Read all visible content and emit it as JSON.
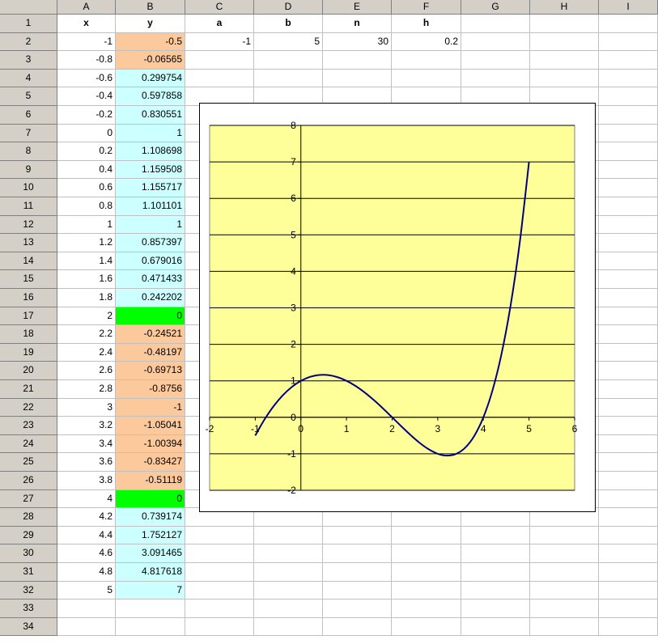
{
  "columns": [
    "A",
    "B",
    "C",
    "D",
    "E",
    "F",
    "G",
    "H",
    "I"
  ],
  "row_numbers": [
    "1",
    "2",
    "3",
    "4",
    "5",
    "6",
    "7",
    "8",
    "9",
    "10",
    "11",
    "12",
    "13",
    "14",
    "15",
    "16",
    "17",
    "18",
    "19",
    "20",
    "21",
    "22",
    "23",
    "24",
    "25",
    "26",
    "27",
    "28",
    "29",
    "30",
    "31",
    "32",
    "33",
    "34"
  ],
  "header_row": {
    "x": "x",
    "y": "y",
    "a": "a",
    "b": "b",
    "n": "n",
    "h": "h"
  },
  "params": {
    "a": "-1",
    "b": "5",
    "n": "30",
    "h": "0.2"
  },
  "table": [
    {
      "x": "-1",
      "y": "-0.5",
      "fill": "orange"
    },
    {
      "x": "-0.8",
      "y": "-0.06565",
      "fill": "orange"
    },
    {
      "x": "-0.6",
      "y": "0.299754",
      "fill": "cyan"
    },
    {
      "x": "-0.4",
      "y": "0.597858",
      "fill": "cyan"
    },
    {
      "x": "-0.2",
      "y": "0.830551",
      "fill": "cyan"
    },
    {
      "x": "0",
      "y": "1",
      "fill": "cyan"
    },
    {
      "x": "0.2",
      "y": "1.108698",
      "fill": "cyan"
    },
    {
      "x": "0.4",
      "y": "1.159508",
      "fill": "cyan"
    },
    {
      "x": "0.6",
      "y": "1.155717",
      "fill": "cyan"
    },
    {
      "x": "0.8",
      "y": "1.101101",
      "fill": "cyan"
    },
    {
      "x": "1",
      "y": "1",
      "fill": "cyan"
    },
    {
      "x": "1.2",
      "y": "0.857397",
      "fill": "cyan"
    },
    {
      "x": "1.4",
      "y": "0.679016",
      "fill": "cyan"
    },
    {
      "x": "1.6",
      "y": "0.471433",
      "fill": "cyan"
    },
    {
      "x": "1.8",
      "y": "0.242202",
      "fill": "cyan"
    },
    {
      "x": "2",
      "y": "0",
      "fill": "green"
    },
    {
      "x": "2.2",
      "y": "-0.24521",
      "fill": "orange"
    },
    {
      "x": "2.4",
      "y": "-0.48197",
      "fill": "orange"
    },
    {
      "x": "2.6",
      "y": "-0.69713",
      "fill": "orange"
    },
    {
      "x": "2.8",
      "y": "-0.8756",
      "fill": "orange"
    },
    {
      "x": "3",
      "y": "-1",
      "fill": "orange"
    },
    {
      "x": "3.2",
      "y": "-1.05041",
      "fill": "orange"
    },
    {
      "x": "3.4",
      "y": "-1.00394",
      "fill": "orange"
    },
    {
      "x": "3.6",
      "y": "-0.83427",
      "fill": "orange"
    },
    {
      "x": "3.8",
      "y": "-0.51119",
      "fill": "orange"
    },
    {
      "x": "4",
      "y": "0",
      "fill": "green"
    },
    {
      "x": "4.2",
      "y": "0.739174",
      "fill": "cyan"
    },
    {
      "x": "4.4",
      "y": "1.752127",
      "fill": "cyan"
    },
    {
      "x": "4.6",
      "y": "3.091465",
      "fill": "cyan"
    },
    {
      "x": "4.8",
      "y": "4.817618",
      "fill": "cyan"
    },
    {
      "x": "5",
      "y": "7",
      "fill": "cyan"
    }
  ],
  "colors": {
    "orange": "#fcc99c",
    "cyan": "#ccffff",
    "green": "#00ff00",
    "plot_area": "#ffff99",
    "line": "#000080",
    "header_gray": "#d4d0c8"
  },
  "chart_data": {
    "type": "line",
    "title": "",
    "xlabel": "",
    "ylabel": "",
    "xlim": [
      -2,
      6
    ],
    "ylim": [
      -2,
      8
    ],
    "x_ticks": [
      "-2",
      "-1",
      "0",
      "1",
      "2",
      "3",
      "4",
      "5",
      "6"
    ],
    "y_ticks": [
      "-2",
      "-1",
      "0",
      "1",
      "2",
      "3",
      "4",
      "5",
      "6",
      "7",
      "8"
    ],
    "grid": "horizontal",
    "legend": "none",
    "series": [
      {
        "x": [
          -1,
          -0.8,
          -0.6,
          -0.4,
          -0.2,
          0,
          0.2,
          0.4,
          0.6,
          0.8,
          1,
          1.2,
          1.4,
          1.6,
          1.8,
          2,
          2.2,
          2.4,
          2.6,
          2.8,
          3,
          3.2,
          3.4,
          3.6,
          3.8,
          4,
          4.2,
          4.4,
          4.6,
          4.8,
          5
        ],
        "values": [
          -0.5,
          -0.06565,
          0.299754,
          0.597858,
          0.830551,
          1,
          1.108698,
          1.159508,
          1.155717,
          1.101101,
          1,
          0.857397,
          0.679016,
          0.471433,
          0.242202,
          0,
          -0.24521,
          -0.48197,
          -0.69713,
          -0.8756,
          -1,
          -1.05041,
          -1.00394,
          -0.83427,
          -0.51119,
          0,
          0.739174,
          1.752127,
          3.091465,
          4.817618,
          7
        ]
      }
    ]
  }
}
